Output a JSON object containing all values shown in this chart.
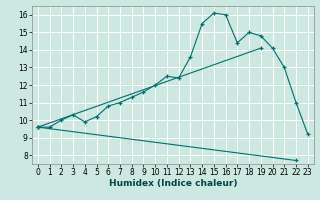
{
  "title": "",
  "xlabel": "Humidex (Indice chaleur)",
  "bg_color": "#cce8e0",
  "grid_color": "#ffffff",
  "line_color": "#007070",
  "xlim": [
    -0.5,
    23.5
  ],
  "ylim": [
    7.5,
    16.5
  ],
  "xticks": [
    0,
    1,
    2,
    3,
    4,
    5,
    6,
    7,
    8,
    9,
    10,
    11,
    12,
    13,
    14,
    15,
    16,
    17,
    18,
    19,
    20,
    21,
    22,
    23
  ],
  "yticks": [
    8,
    9,
    10,
    11,
    12,
    13,
    14,
    15,
    16
  ],
  "series1_x": [
    0,
    1,
    2,
    3,
    4,
    5,
    6,
    7,
    8,
    9,
    10,
    11,
    12,
    13,
    14,
    15,
    16,
    17,
    18,
    19,
    20,
    21,
    22,
    23
  ],
  "series1_y": [
    9.6,
    9.6,
    10.0,
    10.3,
    9.9,
    10.2,
    10.8,
    11.0,
    11.3,
    11.6,
    12.0,
    12.5,
    12.4,
    13.6,
    15.5,
    16.1,
    16.0,
    14.4,
    15.0,
    14.8,
    14.1,
    13.0,
    11.0,
    9.2
  ],
  "series2_x": [
    0,
    19
  ],
  "series2_y": [
    9.6,
    14.1
  ],
  "series3_x": [
    0,
    22
  ],
  "series3_y": [
    9.6,
    7.7
  ],
  "xlabel_fontsize": 6.5,
  "tick_fontsize": 5.5
}
